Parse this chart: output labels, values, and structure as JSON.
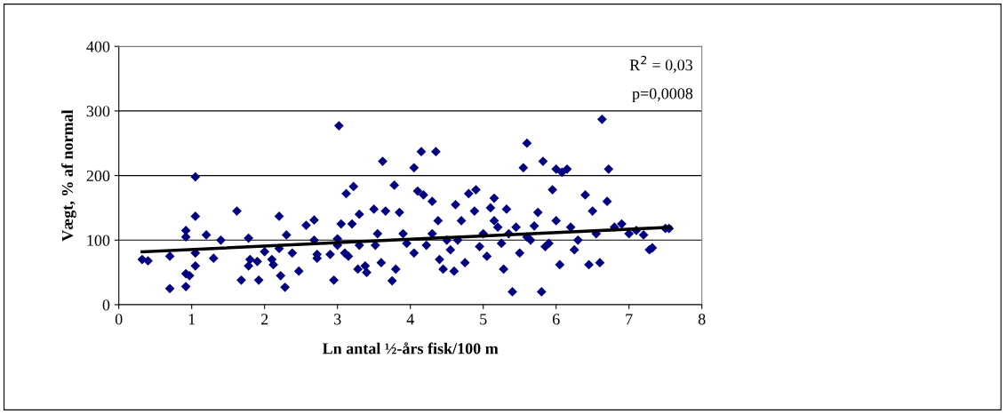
{
  "chart_data": {
    "type": "scatter",
    "xlabel": "Ln antal ½-års fisk/100 m",
    "ylabel": "Vægt, % af normal",
    "xlim": [
      0,
      8
    ],
    "xticks": [
      0,
      1,
      2,
      3,
      4,
      5,
      6,
      7,
      8
    ],
    "ylim": [
      0,
      400
    ],
    "yticks": [
      0,
      100,
      200,
      300,
      400
    ],
    "grid": "y",
    "marker": "diamond",
    "annotations": [
      "R$^{2}$ = 0,03",
      "p=0,0008"
    ],
    "series": [
      {
        "color": "#000080",
        "x": [
          0.32,
          0.4,
          0.7,
          0.7,
          0.92,
          0.92,
          0.92,
          0.92,
          0.97,
          1.05,
          1.05,
          1.05,
          1.05,
          1.2,
          1.3,
          1.4,
          1.62,
          1.68,
          1.78,
          1.78,
          1.8,
          1.9,
          1.92,
          2.0,
          2.1,
          2.12,
          2.2,
          2.2,
          2.22,
          2.28,
          2.3,
          2.38,
          2.47,
          2.57,
          2.68,
          2.68,
          2.72,
          2.72,
          2.9,
          2.95,
          3.0,
          3.0,
          3.02,
          3.05,
          3.1,
          3.12,
          3.15,
          3.2,
          3.22,
          3.28,
          3.3,
          3.3,
          3.38,
          3.4,
          3.5,
          3.52,
          3.55,
          3.6,
          3.62,
          3.66,
          3.75,
          3.78,
          3.8,
          3.85,
          3.9,
          3.95,
          4.05,
          4.05,
          4.1,
          4.15,
          4.18,
          4.22,
          4.3,
          4.35,
          4.38,
          4.4,
          4.45,
          4.5,
          4.55,
          4.6,
          4.62,
          4.7,
          4.75,
          4.8,
          4.88,
          4.9,
          4.95,
          5.0,
          5.05,
          5.1,
          5.15,
          5.2,
          5.28,
          5.32,
          5.4,
          5.45,
          5.5,
          5.55,
          5.6,
          5.65,
          5.7,
          5.75,
          5.8,
          5.82,
          5.9,
          5.95,
          6.0,
          6.05,
          6.08,
          6.15,
          6.2,
          6.3,
          6.4,
          6.45,
          6.5,
          6.55,
          6.6,
          6.63,
          6.7,
          6.72,
          6.8,
          6.9,
          7.0,
          7.1,
          7.2,
          7.28,
          7.32,
          7.5,
          7.55,
          5.25,
          5.35,
          5.6,
          5.85,
          6.0,
          6.25,
          4.3,
          4.65,
          5.15
        ],
        "values": [
          70,
          68,
          75,
          25,
          115,
          105,
          48,
          28,
          45,
          198,
          137,
          80,
          60,
          108,
          72,
          100,
          145,
          38,
          103,
          60,
          70,
          67,
          38,
          82,
          70,
          62,
          137,
          87,
          45,
          27,
          108,
          80,
          52,
          123,
          131,
          100,
          78,
          72,
          78,
          38,
          102,
          92,
          277,
          125,
          80,
          172,
          75,
          125,
          183,
          55,
          140,
          92,
          60,
          50,
          148,
          92,
          110,
          65,
          222,
          145,
          37,
          185,
          55,
          143,
          110,
          95,
          212,
          80,
          176,
          237,
          170,
          92,
          160,
          237,
          130,
          70,
          55,
          100,
          85,
          52,
          155,
          130,
          65,
          172,
          145,
          178,
          90,
          110,
          75,
          150,
          165,
          120,
          55,
          148,
          20,
          120,
          80,
          212,
          250,
          100,
          122,
          143,
          20,
          222,
          95,
          178,
          210,
          62,
          205,
          210,
          120,
          100,
          170,
          62,
          145,
          110,
          65,
          287,
          160,
          210,
          120,
          125,
          110,
          115,
          108,
          85,
          88,
          118,
          118,
          95,
          110,
          105,
          90,
          130,
          85,
          110,
          100,
          130
        ]
      },
      {
        "type": "line",
        "color": "#000000",
        "marker": "none",
        "x": [
          0.32,
          7.57
        ],
        "values": [
          82,
          120
        ]
      }
    ]
  }
}
